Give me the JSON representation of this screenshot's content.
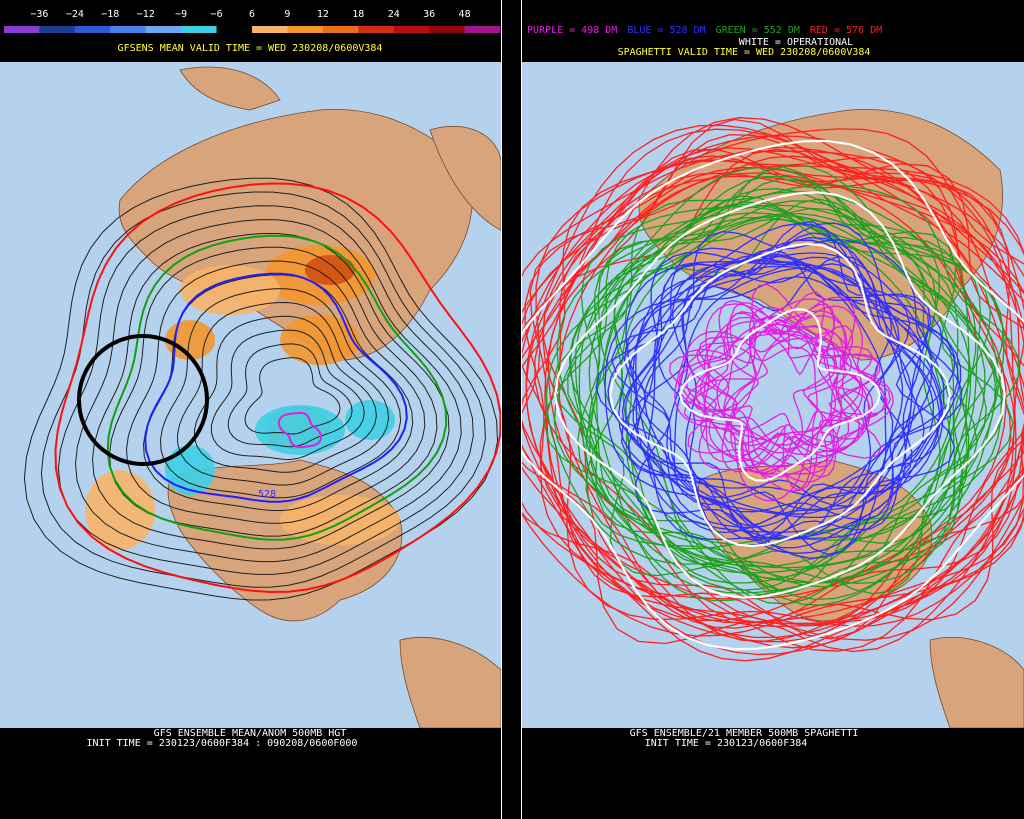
{
  "left_panel": {
    "colorbar": {
      "labels": [
        "−36",
        "−24",
        "−18",
        "−12",
        "−9",
        "−6",
        "6",
        "9",
        "12",
        "18",
        "24",
        "36",
        "48"
      ],
      "colors": [
        "#8a3cd0",
        "#1e3c96",
        "#2e5ad2",
        "#4a82ea",
        "#6aa8f0",
        "#3ccfe6",
        "#000000",
        "#f8b468",
        "#f4962e",
        "#e8701a",
        "#d03010",
        "#b80e0e",
        "#8c0606",
        "#a0148c"
      ]
    },
    "title": "GFSENS MEAN VALID TIME = WED 230208/0600V384",
    "contour_label": "528",
    "footer": [
      "GFS ENSEMBLE MEAN/ANOM 500MB HGT",
      "INIT TIME = 230123/0600F384 : 090208/0600F000"
    ]
  },
  "right_panel": {
    "legend": [
      {
        "text": "PURPLE = 498 DM",
        "color": "#e020e0"
      },
      {
        "text": "BLUE = 528 DM",
        "color": "#3030ff"
      },
      {
        "text": "GREEN = 552 DM",
        "color": "#20a020"
      },
      {
        "text": "RED = 576 DM",
        "color": "#ff2020"
      }
    ],
    "operational": "WHITE = OPERATIONAL",
    "title": "SPAGHETTI VALID TIME = WED 230208/0600V384",
    "footer": [
      "GFS ENSEMBLE/21 MEMBER 500MB SPAGHETTI",
      "INIT TIME = 230123/0600F384"
    ]
  }
}
